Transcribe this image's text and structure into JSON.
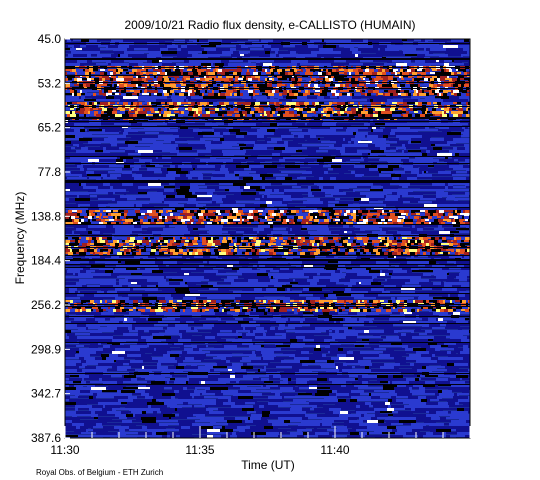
{
  "chart_data": {
    "type": "heatmap",
    "title": "2009/10/21  Radio flux density, e-CALLISTO (HUMAIN)",
    "xlabel": "Time (UT)",
    "ylabel": "Frequency (MHz)",
    "credit": "Royal Obs. of Belgium - ETH Zurich",
    "x_ticks": [
      "11:30",
      "11:35",
      "11:40"
    ],
    "x_range_minutes": [
      0,
      15
    ],
    "y_ticks": [
      "45.0",
      "53.2",
      "65.2",
      "77.8",
      "138.8",
      "184.4",
      "256.2",
      "298.9",
      "342.7",
      "387.6"
    ],
    "y_axis_direction": "frequency increases downward",
    "colormap": [
      "#000000",
      "#101090",
      "#2a3ad0",
      "#a02020",
      "#e05020",
      "#ffa030",
      "#ffff80",
      "#ffffff"
    ],
    "bright_bands": [
      {
        "freq_range_mhz": [
          50,
          56
        ],
        "intensity": "high"
      },
      {
        "freq_range_mhz": [
          58,
          62
        ],
        "intensity": "medium"
      },
      {
        "freq_range_mhz": [
          130,
          145
        ],
        "intensity": "high"
      },
      {
        "freq_range_mhz": [
          160,
          175
        ],
        "intensity": "medium"
      },
      {
        "freq_range_mhz": [
          250,
          260
        ],
        "intensity": "medium"
      }
    ]
  }
}
